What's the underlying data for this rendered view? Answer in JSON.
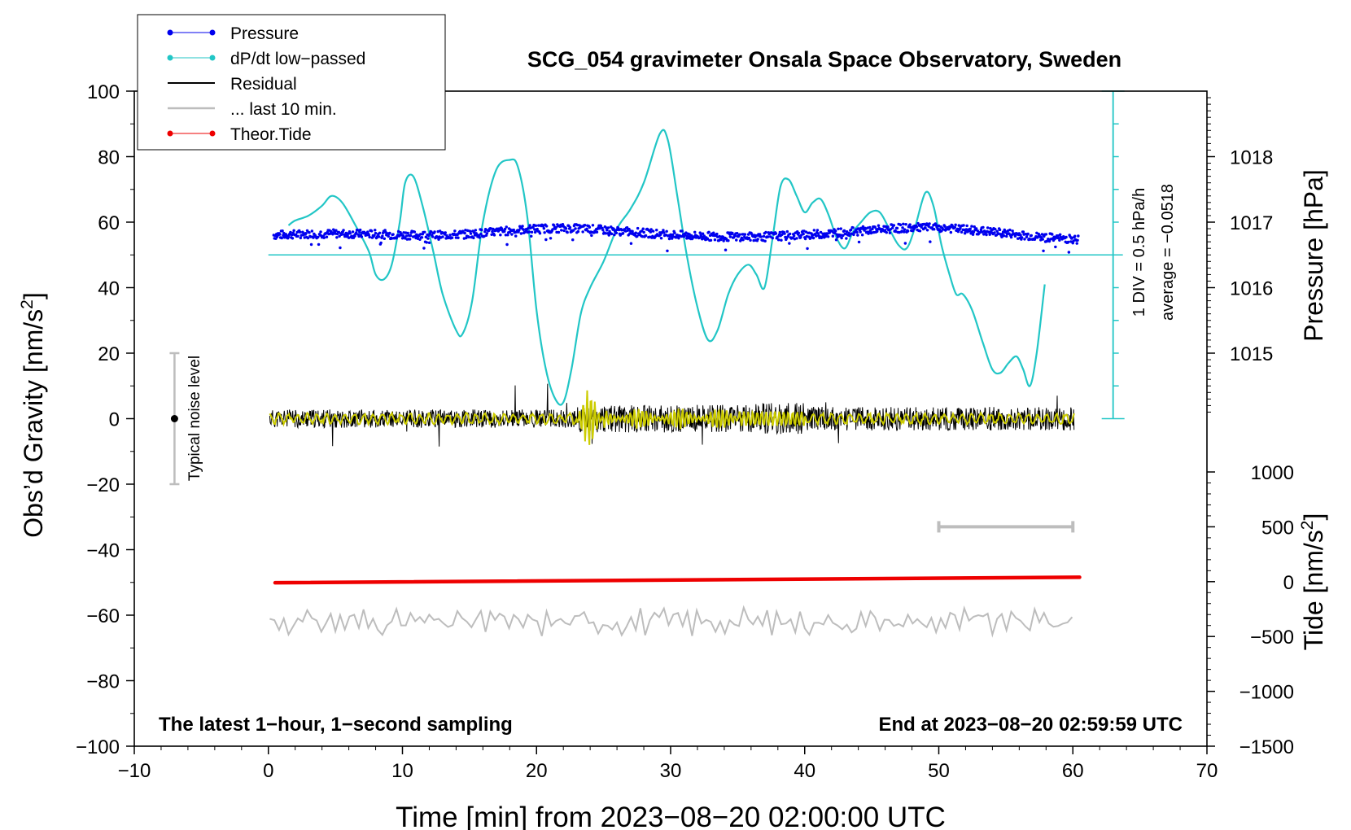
{
  "chart_data": {
    "type": "line",
    "title": "SCG_054 gravimeter Onsala Space Observatory, Sweden",
    "xlabel": "Time [min] from 2023−08−20 02:00:00 UTC",
    "xlim": [
      -10,
      70
    ],
    "xticks": [
      -10,
      0,
      10,
      20,
      30,
      40,
      50,
      60,
      70
    ],
    "xtick_labels": [
      "−10",
      "0",
      "10",
      "20",
      "30",
      "40",
      "50",
      "60",
      "70"
    ],
    "left_axis": {
      "label_main": "Obs’d Gravity [nm/s",
      "label_sup": "2",
      "label_end": "]",
      "ylim": [
        -100,
        100
      ],
      "ticks": [
        -100,
        -80,
        -60,
        -40,
        -20,
        0,
        20,
        40,
        60,
        80,
        100
      ],
      "tick_labels": [
        "−100",
        "−80",
        "−60",
        "−40",
        "−20",
        "0",
        "20",
        "40",
        "60",
        "80",
        "100"
      ]
    },
    "pressure_axis": {
      "label": "Pressure [hPa]",
      "ticks": [
        1015,
        1016,
        1017,
        1018
      ],
      "tick_labels": [
        "1015",
        "1016",
        "1017",
        "1018"
      ],
      "gravity_equivalent": [
        20,
        40,
        60,
        80
      ]
    },
    "tide_axis": {
      "label_main": "Tide [nm/s",
      "label_sup": "2",
      "label_end": "]",
      "ylim": [
        -1500,
        1000
      ],
      "ticks": [
        -1500,
        -1000,
        -500,
        0,
        500,
        1000
      ],
      "tick_labels": [
        "−1500",
        "−1000",
        "−500",
        "0",
        "500",
        "1000"
      ]
    },
    "dpdt_scale": {
      "label": "1 DIV = 0.5 hPa/h",
      "average_label": "average = −0.0518",
      "x_min": 63,
      "y_bottom": 0,
      "y_top": 100,
      "y_zero_line": 50
    },
    "legend": {
      "position": "top-left",
      "entries": [
        {
          "label": "Pressure",
          "color": "#0000ee",
          "marker": true
        },
        {
          "label": "dP/dt low−passed",
          "color": "#22c6c6",
          "marker": true
        },
        {
          "label": "Residual",
          "color": "#000000",
          "marker": false
        },
        {
          "label": "... last 10 min.",
          "color": "#bdbdbd",
          "marker": false
        },
        {
          "label": "Theor.Tide",
          "color": "#ee0000",
          "marker": true
        }
      ]
    },
    "noise_bar": {
      "x": -7,
      "center": 0,
      "low": -20,
      "high": 20,
      "label": "Typical noise level"
    },
    "last10_bar": {
      "x_start": 50,
      "x_end": 60,
      "tide_level": 500
    },
    "annotations": {
      "bottom_left": "The latest 1−hour, 1−second sampling",
      "bottom_right": "End at 2023−08−20 02:59:59 UTC"
    },
    "series": [
      {
        "name": "dP/dt low-passed",
        "color": "#22c6c6",
        "axis": "left",
        "x": [
          1.5,
          2,
          3,
          4,
          4.7,
          5.5,
          6.5,
          7.5,
          8,
          8.6,
          9.2,
          9.8,
          10.2,
          10.8,
          11.5,
          12.3,
          13,
          14,
          14.5,
          15.2,
          16,
          17,
          18,
          18.6,
          19.3,
          20,
          20.7,
          21.4,
          22,
          22.6,
          23.3,
          24,
          25,
          26,
          27,
          28,
          29.2,
          29.8,
          30.5,
          31.2,
          32,
          32.8,
          33.5,
          34.3,
          35,
          35.8,
          36.4,
          37,
          37.6,
          38.2,
          38.8,
          39.4,
          40,
          40.6,
          41.2,
          41.8,
          42.4,
          43,
          43.6,
          44.2,
          44.9,
          45.6,
          46.3,
          47,
          47.6,
          48.2,
          49,
          49.6,
          50.2,
          50.8,
          51.3,
          51.8,
          52.5,
          53.3,
          54,
          54.6,
          55.2,
          55.8,
          56.3,
          56.8,
          57.3,
          57.9
        ],
        "y": [
          59,
          60.5,
          62,
          65,
          68,
          66,
          59,
          51,
          44,
          42.5,
          47,
          60,
          72,
          74,
          65,
          51,
          38,
          27,
          26,
          36,
          60,
          76,
          79,
          77,
          62,
          33,
          15,
          6,
          5,
          15,
          32,
          40,
          48,
          58,
          64,
          72,
          87,
          85,
          68,
          50,
          34,
          24,
          27,
          38,
          44,
          47,
          44,
          40,
          55,
          71,
          73,
          68,
          63,
          66,
          67,
          62,
          55,
          52,
          57,
          60,
          63,
          63,
          58,
          53,
          52,
          58,
          69,
          65,
          53,
          44,
          38,
          38,
          33,
          23,
          15,
          14,
          17,
          19,
          15,
          10,
          20,
          41
        ]
      },
      {
        "name": "Theor.Tide",
        "color": "#ee0000",
        "axis": "tide",
        "x": [
          0.5,
          60.5
        ],
        "y": [
          -10,
          40
        ]
      }
    ]
  }
}
